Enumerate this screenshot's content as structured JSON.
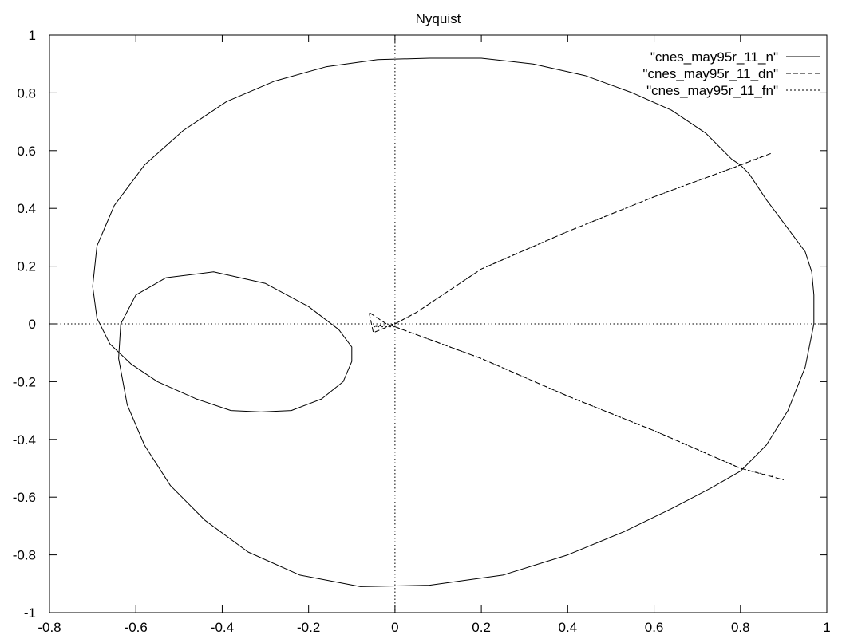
{
  "chart_data": {
    "type": "line",
    "title": "Nyquist",
    "xlabel": "",
    "ylabel": "",
    "xlim": [
      -0.8,
      1
    ],
    "ylim": [
      -1,
      1
    ],
    "xticks": [
      "-0.8",
      "-0.6",
      "-0.4",
      "-0.2",
      "0",
      "0.2",
      "0.4",
      "0.6",
      "0.8",
      "1"
    ],
    "yticks": [
      "-1",
      "-0.8",
      "-0.6",
      "-0.4",
      "-0.2",
      "0",
      "0.2",
      "0.4",
      "0.6",
      "0.8",
      "1"
    ],
    "zero_axes": true,
    "grid": false,
    "legend_position": "top-right",
    "series": [
      {
        "name": "\"cnes_may95r_11_n\"",
        "style": "solid",
        "x": [
          0.97,
          0.97,
          0.965,
          0.95,
          0.925,
          0.9,
          0.86,
          0.82,
          0.8,
          0.78,
          0.72,
          0.64,
          0.55,
          0.44,
          0.32,
          0.2,
          0.08,
          -0.04,
          -0.16,
          -0.28,
          -0.39,
          -0.49,
          -0.58,
          -0.65,
          -0.69,
          -0.7,
          -0.69,
          -0.66,
          -0.61,
          -0.55,
          -0.46,
          -0.38,
          -0.31,
          -0.24,
          -0.17,
          -0.12,
          -0.1,
          -0.1,
          -0.13,
          -0.2,
          -0.3,
          -0.42,
          -0.53,
          -0.6,
          -0.635,
          -0.64,
          -0.62,
          -0.58,
          -0.52,
          -0.44,
          -0.34,
          -0.22,
          -0.08,
          0.08,
          0.25,
          0.4,
          0.53,
          0.64,
          0.73,
          0.8,
          0.86,
          0.91,
          0.95,
          0.97
        ],
        "y": [
          0.0,
          0.1,
          0.18,
          0.25,
          0.3,
          0.35,
          0.43,
          0.52,
          0.55,
          0.57,
          0.66,
          0.74,
          0.8,
          0.86,
          0.9,
          0.92,
          0.92,
          0.915,
          0.89,
          0.84,
          0.77,
          0.67,
          0.55,
          0.41,
          0.27,
          0.13,
          0.02,
          -0.07,
          -0.14,
          -0.2,
          -0.26,
          -0.3,
          -0.305,
          -0.3,
          -0.26,
          -0.2,
          -0.13,
          -0.08,
          -0.02,
          0.06,
          0.14,
          0.18,
          0.16,
          0.1,
          0.0,
          -0.12,
          -0.28,
          -0.42,
          -0.56,
          -0.68,
          -0.79,
          -0.87,
          -0.91,
          -0.905,
          -0.87,
          -0.8,
          -0.72,
          -0.64,
          -0.57,
          -0.51,
          -0.42,
          -0.3,
          -0.15,
          0.0
        ]
      },
      {
        "name": "\"cnes_may95r_11_dn\"",
        "style": "dashed",
        "x": [
          0.87,
          0.8,
          0.6,
          0.4,
          0.2,
          0.05,
          0.0,
          -0.05,
          -0.06,
          -0.02,
          0.0,
          0.2,
          0.4,
          0.6,
          0.8,
          0.9
        ],
        "y": [
          0.59,
          0.55,
          0.44,
          0.32,
          0.19,
          0.04,
          0.0,
          -0.03,
          0.04,
          0.0,
          -0.01,
          -0.12,
          -0.25,
          -0.37,
          -0.5,
          -0.54
        ]
      },
      {
        "name": "\"cnes_may95r_11_fn\"",
        "style": "dotted",
        "x": [
          0.85,
          0.8,
          0.6,
          0.4,
          0.2,
          0.05,
          0.0,
          -0.05,
          0.0,
          0.2,
          0.4,
          0.6,
          0.8,
          0.88
        ],
        "y": [
          0.58,
          0.55,
          0.44,
          0.32,
          0.19,
          0.04,
          0.0,
          -0.01,
          -0.01,
          -0.12,
          -0.25,
          -0.37,
          -0.5,
          -0.53
        ]
      }
    ]
  }
}
